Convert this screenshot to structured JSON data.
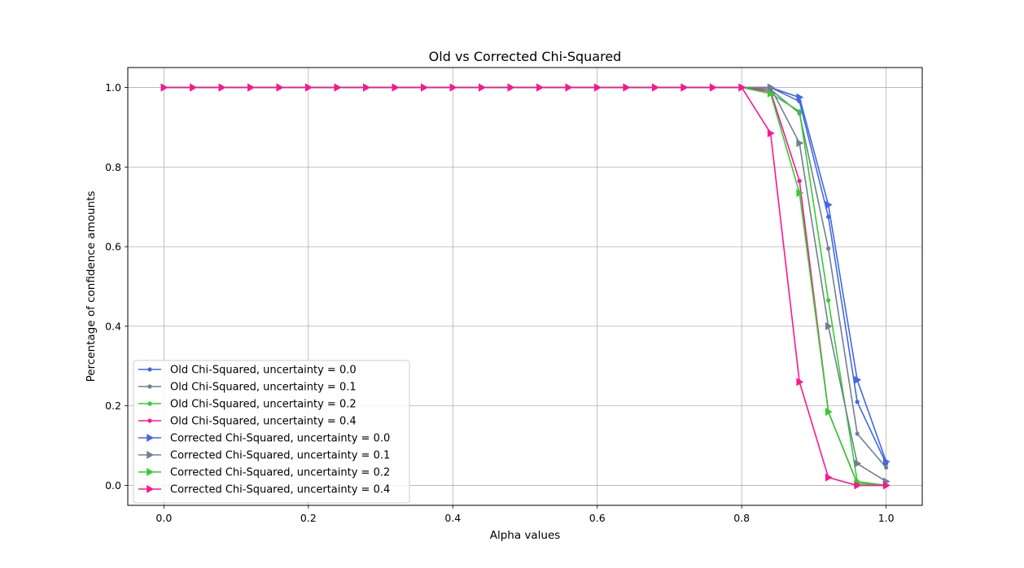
{
  "chart_data": {
    "type": "line",
    "title": "Old vs Corrected Chi-Squared",
    "xlabel": "Alpha values",
    "ylabel": "Percentage of confidence amounts",
    "xlim": [
      -0.05,
      1.05
    ],
    "ylim": [
      -0.05,
      1.05
    ],
    "xticks": [
      0.0,
      0.2,
      0.4,
      0.6,
      0.8,
      1.0
    ],
    "xtick_labels": [
      "0.0",
      "0.2",
      "0.4",
      "0.6",
      "0.8",
      "1.0"
    ],
    "yticks": [
      0.0,
      0.2,
      0.4,
      0.6,
      0.8,
      1.0
    ],
    "ytick_labels": [
      "0.0",
      "0.2",
      "0.4",
      "0.6",
      "0.8",
      "1.0"
    ],
    "grid": true,
    "legend_position": "lower-left",
    "x": [
      0.0,
      0.04,
      0.08,
      0.12,
      0.16,
      0.2,
      0.24,
      0.28,
      0.32,
      0.36,
      0.4,
      0.44,
      0.48,
      0.52,
      0.56,
      0.6,
      0.64,
      0.68,
      0.72,
      0.76,
      0.8,
      0.84,
      0.88,
      0.92,
      0.96,
      1.0
    ],
    "series": [
      {
        "name": "Old Chi-Squared, uncertainty = 0.0",
        "color": "#4169e1",
        "marker": "dot",
        "values": [
          1,
          1,
          1,
          1,
          1,
          1,
          1,
          1,
          1,
          1,
          1,
          1,
          1,
          1,
          1,
          1,
          1,
          1,
          1,
          1,
          1,
          1.0,
          0.965,
          0.675,
          0.21,
          0.055
        ]
      },
      {
        "name": "Old Chi-Squared, uncertainty = 0.1",
        "color": "#708090",
        "marker": "dot",
        "values": [
          1,
          1,
          1,
          1,
          1,
          1,
          1,
          1,
          1,
          1,
          1,
          1,
          1,
          1,
          1,
          1,
          1,
          1,
          1,
          1,
          1,
          0.995,
          0.935,
          0.595,
          0.13,
          0.045
        ]
      },
      {
        "name": "Old Chi-Squared, uncertainty = 0.2",
        "color": "#32cd32",
        "marker": "dot",
        "values": [
          1,
          1,
          1,
          1,
          1,
          1,
          1,
          1,
          1,
          1,
          1,
          1,
          1,
          1,
          1,
          1,
          1,
          1,
          1,
          1,
          1,
          0.985,
          0.94,
          0.465,
          0.01,
          0.0
        ]
      },
      {
        "name": "Old Chi-Squared, uncertainty = 0.4",
        "color": "#ff1493",
        "marker": "dot",
        "values": [
          1,
          1,
          1,
          1,
          1,
          1,
          1,
          1,
          1,
          1,
          1,
          1,
          1,
          1,
          1,
          1,
          1,
          1,
          1,
          1,
          1,
          0.99,
          0.765,
          0.185,
          0.005,
          0.0
        ]
      },
      {
        "name": "Corrected Chi-Squared, uncertainty = 0.0",
        "color": "#4169e1",
        "marker": "triangle",
        "values": [
          1,
          1,
          1,
          1,
          1,
          1,
          1,
          1,
          1,
          1,
          1,
          1,
          1,
          1,
          1,
          1,
          1,
          1,
          1,
          1,
          1,
          1.0,
          0.975,
          0.705,
          0.265,
          0.06
        ]
      },
      {
        "name": "Corrected Chi-Squared, uncertainty = 0.1",
        "color": "#708090",
        "marker": "triangle",
        "values": [
          1,
          1,
          1,
          1,
          1,
          1,
          1,
          1,
          1,
          1,
          1,
          1,
          1,
          1,
          1,
          1,
          1,
          1,
          1,
          1,
          1,
          1.0,
          0.86,
          0.4,
          0.055,
          0.01
        ]
      },
      {
        "name": "Corrected Chi-Squared, uncertainty = 0.2",
        "color": "#32cd32",
        "marker": "triangle",
        "values": [
          1,
          1,
          1,
          1,
          1,
          1,
          1,
          1,
          1,
          1,
          1,
          1,
          1,
          1,
          1,
          1,
          1,
          1,
          1,
          1,
          1,
          0.985,
          0.735,
          0.185,
          0.005,
          0.0
        ]
      },
      {
        "name": "Corrected Chi-Squared, uncertainty = 0.4",
        "color": "#ff1493",
        "marker": "triangle",
        "values": [
          1,
          1,
          1,
          1,
          1,
          1,
          1,
          1,
          1,
          1,
          1,
          1,
          1,
          1,
          1,
          1,
          1,
          1,
          1,
          1,
          1,
          0.885,
          0.26,
          0.02,
          0.0,
          0.0
        ]
      }
    ]
  }
}
